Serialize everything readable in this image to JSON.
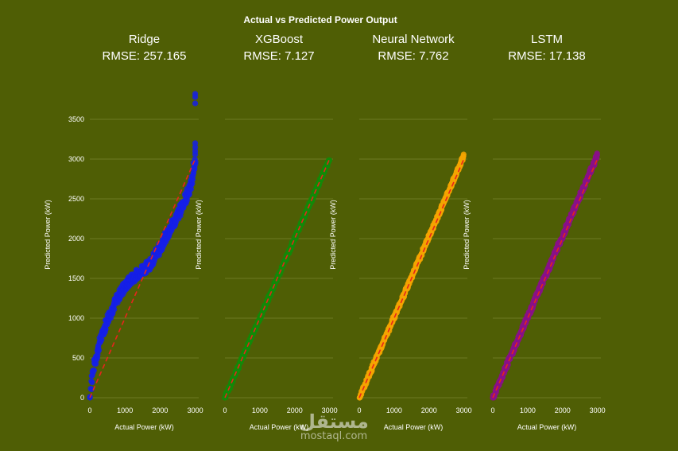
{
  "chart_data": {
    "type": "scatter",
    "title": "Actual vs Predicted Power Output",
    "xlabel": "Actual Power (kW)",
    "ylabel": "Predicted Power (kW)",
    "xlim": [
      0,
      3100
    ],
    "ylim": [
      0,
      3800
    ],
    "xticks": [
      "0",
      "1000",
      "2000",
      "3000"
    ],
    "yticks": [
      "0",
      "500",
      "1000",
      "1500",
      "2000",
      "2500",
      "3000",
      "3500"
    ],
    "grid": true,
    "reference_line": {
      "style": "dashed",
      "color": "#e8241c",
      "from": [
        0,
        0
      ],
      "to": [
        3000,
        3000
      ]
    },
    "panels": [
      {
        "name": "Ridge",
        "metric_label": "RMSE: 257.165",
        "color": "#1520e6",
        "curve": [
          [
            0,
            0
          ],
          [
            30,
            150
          ],
          [
            100,
            350
          ],
          [
            200,
            560
          ],
          [
            300,
            720
          ],
          [
            400,
            860
          ],
          [
            500,
            980
          ],
          [
            600,
            1080
          ],
          [
            700,
            1180
          ],
          [
            800,
            1260
          ],
          [
            900,
            1340
          ],
          [
            1000,
            1400
          ],
          [
            1100,
            1450
          ],
          [
            1200,
            1500
          ],
          [
            1300,
            1540
          ],
          [
            1400,
            1580
          ],
          [
            1500,
            1610
          ],
          [
            1600,
            1640
          ],
          [
            1700,
            1680
          ],
          [
            1800,
            1740
          ],
          [
            1900,
            1810
          ],
          [
            2000,
            1880
          ],
          [
            2100,
            1960
          ],
          [
            2200,
            2050
          ],
          [
            2300,
            2130
          ],
          [
            2400,
            2210
          ],
          [
            2500,
            2290
          ],
          [
            2600,
            2380
          ],
          [
            2700,
            2480
          ],
          [
            2800,
            2580
          ],
          [
            2900,
            2720
          ],
          [
            2950,
            2850
          ],
          [
            3000,
            3000
          ]
        ],
        "spread": 70,
        "outliers": [
          [
            3000,
            3060
          ],
          [
            3000,
            3100
          ],
          [
            3000,
            3150
          ],
          [
            3000,
            3200
          ],
          [
            3000,
            3700
          ],
          [
            3000,
            3780
          ],
          [
            3000,
            3820
          ]
        ]
      },
      {
        "name": "XGBoost",
        "metric_label": "RMSE: 7.127",
        "color": "#138a08",
        "curve": [
          [
            0,
            0
          ],
          [
            3000,
            3000
          ]
        ],
        "spread": 18,
        "outliers": []
      },
      {
        "name": "Neural Network",
        "metric_label": "RMSE: 7.762",
        "color": "#f5a500",
        "curve": [
          [
            0,
            0
          ],
          [
            3000,
            3040
          ]
        ],
        "spread": 20,
        "outliers": []
      },
      {
        "name": "LSTM",
        "metric_label": "RMSE: 17.138",
        "color": "#8a0f8a",
        "curve": [
          [
            0,
            0
          ],
          [
            3000,
            3050
          ]
        ],
        "spread": 30,
        "outliers": []
      }
    ]
  },
  "watermark": {
    "arabic": "مستقل",
    "latin": "mostaql.com"
  }
}
